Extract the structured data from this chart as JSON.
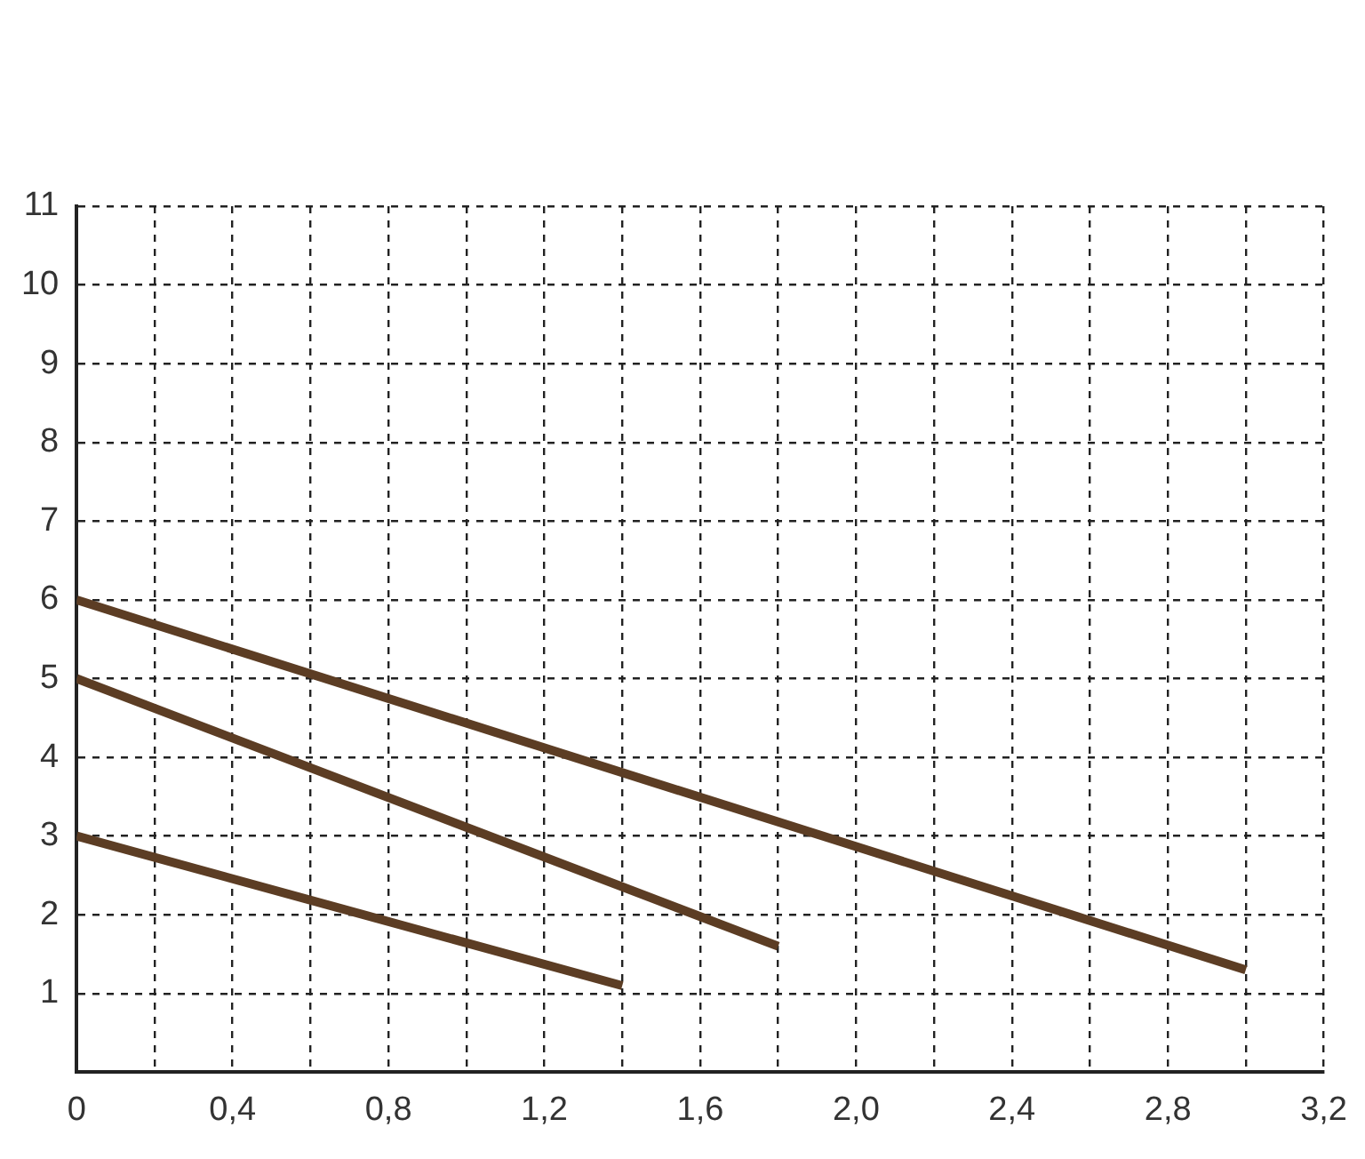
{
  "chart_data": {
    "type": "line",
    "series": [
      {
        "color": "#5c3d24",
        "x": [
          0,
          3.0
        ],
        "values": [
          6,
          1.3
        ]
      },
      {
        "color": "#5c3d24",
        "x": [
          0,
          1.8
        ],
        "values": [
          5,
          1.6
        ]
      },
      {
        "color": "#5c3d24",
        "x": [
          0,
          1.4
        ],
        "values": [
          3,
          1.1
        ]
      }
    ],
    "xlim": [
      0,
      3.2
    ],
    "xticks": [
      {
        "value": 0,
        "label": "0"
      },
      {
        "value": 0.2,
        "label": null
      },
      {
        "value": 0.4,
        "label": "0,4"
      },
      {
        "value": 0.6,
        "label": null
      },
      {
        "value": 0.8,
        "label": "0,8"
      },
      {
        "value": 1.0,
        "label": null
      },
      {
        "value": 1.2,
        "label": "1,2"
      },
      {
        "value": 1.4,
        "label": null
      },
      {
        "value": 1.6,
        "label": "1,6"
      },
      {
        "value": 1.8,
        "label": null
      },
      {
        "value": 2.0,
        "label": "2,0"
      },
      {
        "value": 2.2,
        "label": null
      },
      {
        "value": 2.4,
        "label": "2,4"
      },
      {
        "value": 2.6,
        "label": null
      },
      {
        "value": 2.8,
        "label": "2,8"
      },
      {
        "value": 3.0,
        "label": null
      },
      {
        "value": 3.2,
        "label": "3,2"
      }
    ],
    "ylim": [
      0,
      11
    ],
    "yticks": [
      {
        "value": 0,
        "label": null
      },
      1,
      2,
      3,
      4,
      5,
      6,
      7,
      8,
      9,
      10,
      11
    ],
    "grid": true,
    "legend": false,
    "marker": "none",
    "line_style": "solid"
  }
}
